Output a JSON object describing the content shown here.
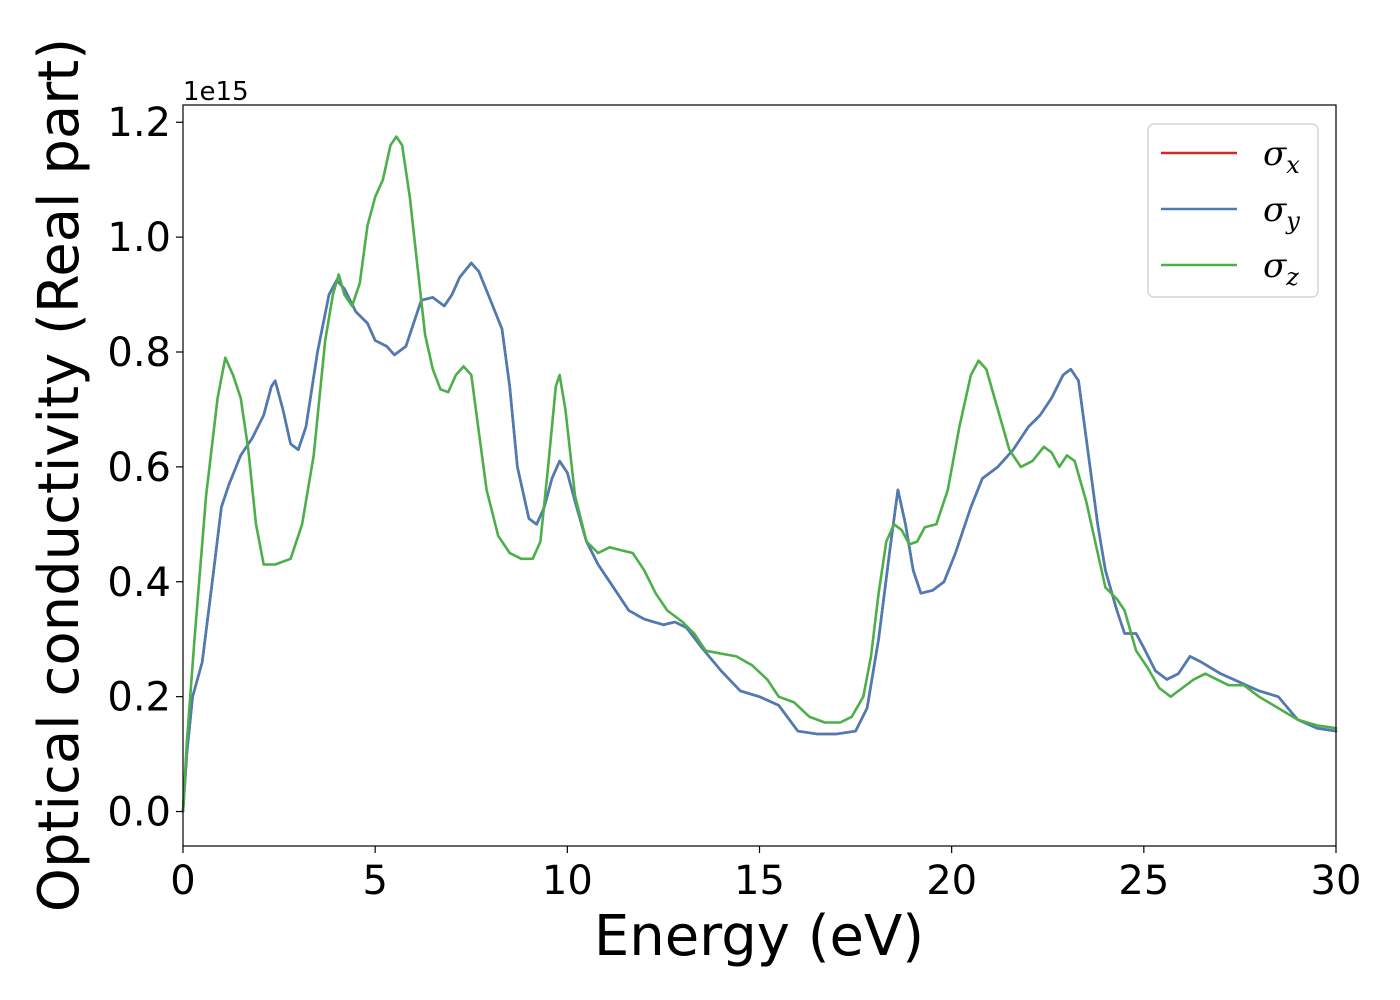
{
  "chart_data": {
    "type": "line",
    "xlabel": "Energy (eV)",
    "ylabel": "Optical conductivity (Real part)",
    "y_offset_label": "1e15",
    "xlim": [
      0,
      30
    ],
    "ylim": [
      -0.06,
      1.23
    ],
    "x_ticks": [
      0,
      5,
      10,
      15,
      20,
      25,
      30
    ],
    "x_tick_labels": [
      "0",
      "5",
      "10",
      "15",
      "20",
      "25",
      "30"
    ],
    "y_ticks": [
      0.0,
      0.2,
      0.4,
      0.6,
      0.8,
      1.0,
      1.2
    ],
    "y_tick_labels": [
      "0.0",
      "0.2",
      "0.4",
      "0.6",
      "0.8",
      "1.0",
      "1.2"
    ],
    "grid": false,
    "legend_position": "top-right",
    "series": [
      {
        "name": "σx",
        "symbol": "σ",
        "subscript": "x",
        "color": "#d62728",
        "points": [
          [
            0,
            0
          ],
          [
            0.1,
            0.1
          ],
          [
            0.25,
            0.2
          ],
          [
            0.5,
            0.26
          ],
          [
            0.8,
            0.42
          ],
          [
            1.0,
            0.53
          ],
          [
            1.2,
            0.57
          ],
          [
            1.5,
            0.62
          ],
          [
            1.8,
            0.65
          ],
          [
            2.1,
            0.69
          ],
          [
            2.3,
            0.74
          ],
          [
            2.4,
            0.75
          ],
          [
            2.6,
            0.7
          ],
          [
            2.8,
            0.64
          ],
          [
            3.0,
            0.63
          ],
          [
            3.2,
            0.67
          ],
          [
            3.5,
            0.8
          ],
          [
            3.8,
            0.9
          ],
          [
            4.0,
            0.925
          ],
          [
            4.2,
            0.91
          ],
          [
            4.5,
            0.87
          ],
          [
            4.8,
            0.85
          ],
          [
            5.0,
            0.82
          ],
          [
            5.3,
            0.81
          ],
          [
            5.5,
            0.795
          ],
          [
            5.8,
            0.81
          ],
          [
            6.0,
            0.85
          ],
          [
            6.2,
            0.89
          ],
          [
            6.5,
            0.895
          ],
          [
            6.8,
            0.88
          ],
          [
            7.0,
            0.9
          ],
          [
            7.2,
            0.93
          ],
          [
            7.5,
            0.955
          ],
          [
            7.7,
            0.94
          ],
          [
            8.0,
            0.89
          ],
          [
            8.3,
            0.84
          ],
          [
            8.5,
            0.74
          ],
          [
            8.7,
            0.6
          ],
          [
            9.0,
            0.51
          ],
          [
            9.2,
            0.5
          ],
          [
            9.4,
            0.53
          ],
          [
            9.6,
            0.58
          ],
          [
            9.8,
            0.61
          ],
          [
            10.0,
            0.59
          ],
          [
            10.2,
            0.54
          ],
          [
            10.5,
            0.47
          ],
          [
            10.8,
            0.43
          ],
          [
            11.2,
            0.39
          ],
          [
            11.6,
            0.35
          ],
          [
            12.0,
            0.335
          ],
          [
            12.5,
            0.325
          ],
          [
            12.8,
            0.33
          ],
          [
            13.1,
            0.32
          ],
          [
            13.5,
            0.285
          ],
          [
            14.0,
            0.245
          ],
          [
            14.5,
            0.21
          ],
          [
            15.0,
            0.2
          ],
          [
            15.5,
            0.185
          ],
          [
            16.0,
            0.14
          ],
          [
            16.5,
            0.135
          ],
          [
            17.0,
            0.135
          ],
          [
            17.5,
            0.14
          ],
          [
            17.8,
            0.18
          ],
          [
            18.1,
            0.3
          ],
          [
            18.4,
            0.46
          ],
          [
            18.6,
            0.56
          ],
          [
            18.8,
            0.5
          ],
          [
            19.0,
            0.42
          ],
          [
            19.2,
            0.38
          ],
          [
            19.5,
            0.385
          ],
          [
            19.8,
            0.4
          ],
          [
            20.1,
            0.45
          ],
          [
            20.5,
            0.53
          ],
          [
            20.8,
            0.58
          ],
          [
            21.2,
            0.6
          ],
          [
            21.6,
            0.63
          ],
          [
            22.0,
            0.67
          ],
          [
            22.3,
            0.69
          ],
          [
            22.6,
            0.72
          ],
          [
            22.9,
            0.76
          ],
          [
            23.1,
            0.77
          ],
          [
            23.3,
            0.75
          ],
          [
            23.5,
            0.65
          ],
          [
            23.8,
            0.5
          ],
          [
            24.0,
            0.42
          ],
          [
            24.3,
            0.35
          ],
          [
            24.5,
            0.31
          ],
          [
            24.8,
            0.31
          ],
          [
            25.0,
            0.285
          ],
          [
            25.3,
            0.245
          ],
          [
            25.6,
            0.23
          ],
          [
            25.9,
            0.24
          ],
          [
            26.2,
            0.27
          ],
          [
            26.5,
            0.26
          ],
          [
            27.0,
            0.24
          ],
          [
            27.5,
            0.225
          ],
          [
            28.0,
            0.21
          ],
          [
            28.5,
            0.2
          ],
          [
            29.0,
            0.16
          ],
          [
            29.5,
            0.145
          ],
          [
            30.0,
            0.14
          ]
        ]
      },
      {
        "name": "σy",
        "symbol": "σ",
        "subscript": "y",
        "color": "#4a7db5",
        "points": [
          [
            0,
            0
          ],
          [
            0.1,
            0.1
          ],
          [
            0.25,
            0.2
          ],
          [
            0.5,
            0.26
          ],
          [
            0.8,
            0.42
          ],
          [
            1.0,
            0.53
          ],
          [
            1.2,
            0.57
          ],
          [
            1.5,
            0.62
          ],
          [
            1.8,
            0.65
          ],
          [
            2.1,
            0.69
          ],
          [
            2.3,
            0.74
          ],
          [
            2.4,
            0.75
          ],
          [
            2.6,
            0.7
          ],
          [
            2.8,
            0.64
          ],
          [
            3.0,
            0.63
          ],
          [
            3.2,
            0.67
          ],
          [
            3.5,
            0.8
          ],
          [
            3.8,
            0.9
          ],
          [
            4.0,
            0.925
          ],
          [
            4.2,
            0.91
          ],
          [
            4.5,
            0.87
          ],
          [
            4.8,
            0.85
          ],
          [
            5.0,
            0.82
          ],
          [
            5.3,
            0.81
          ],
          [
            5.5,
            0.795
          ],
          [
            5.8,
            0.81
          ],
          [
            6.0,
            0.85
          ],
          [
            6.2,
            0.89
          ],
          [
            6.5,
            0.895
          ],
          [
            6.8,
            0.88
          ],
          [
            7.0,
            0.9
          ],
          [
            7.2,
            0.93
          ],
          [
            7.5,
            0.955
          ],
          [
            7.7,
            0.94
          ],
          [
            8.0,
            0.89
          ],
          [
            8.3,
            0.84
          ],
          [
            8.5,
            0.74
          ],
          [
            8.7,
            0.6
          ],
          [
            9.0,
            0.51
          ],
          [
            9.2,
            0.5
          ],
          [
            9.4,
            0.53
          ],
          [
            9.6,
            0.58
          ],
          [
            9.8,
            0.61
          ],
          [
            10.0,
            0.59
          ],
          [
            10.2,
            0.54
          ],
          [
            10.5,
            0.47
          ],
          [
            10.8,
            0.43
          ],
          [
            11.2,
            0.39
          ],
          [
            11.6,
            0.35
          ],
          [
            12.0,
            0.335
          ],
          [
            12.5,
            0.325
          ],
          [
            12.8,
            0.33
          ],
          [
            13.1,
            0.32
          ],
          [
            13.5,
            0.285
          ],
          [
            14.0,
            0.245
          ],
          [
            14.5,
            0.21
          ],
          [
            15.0,
            0.2
          ],
          [
            15.5,
            0.185
          ],
          [
            16.0,
            0.14
          ],
          [
            16.5,
            0.135
          ],
          [
            17.0,
            0.135
          ],
          [
            17.5,
            0.14
          ],
          [
            17.8,
            0.18
          ],
          [
            18.1,
            0.3
          ],
          [
            18.4,
            0.46
          ],
          [
            18.6,
            0.56
          ],
          [
            18.8,
            0.5
          ],
          [
            19.0,
            0.42
          ],
          [
            19.2,
            0.38
          ],
          [
            19.5,
            0.385
          ],
          [
            19.8,
            0.4
          ],
          [
            20.1,
            0.45
          ],
          [
            20.5,
            0.53
          ],
          [
            20.8,
            0.58
          ],
          [
            21.2,
            0.6
          ],
          [
            21.6,
            0.63
          ],
          [
            22.0,
            0.67
          ],
          [
            22.3,
            0.69
          ],
          [
            22.6,
            0.72
          ],
          [
            22.9,
            0.76
          ],
          [
            23.1,
            0.77
          ],
          [
            23.3,
            0.75
          ],
          [
            23.5,
            0.65
          ],
          [
            23.8,
            0.5
          ],
          [
            24.0,
            0.42
          ],
          [
            24.3,
            0.35
          ],
          [
            24.5,
            0.31
          ],
          [
            24.8,
            0.31
          ],
          [
            25.0,
            0.285
          ],
          [
            25.3,
            0.245
          ],
          [
            25.6,
            0.23
          ],
          [
            25.9,
            0.24
          ],
          [
            26.2,
            0.27
          ],
          [
            26.5,
            0.26
          ],
          [
            27.0,
            0.24
          ],
          [
            27.5,
            0.225
          ],
          [
            28.0,
            0.21
          ],
          [
            28.5,
            0.2
          ],
          [
            29.0,
            0.16
          ],
          [
            29.5,
            0.145
          ],
          [
            30.0,
            0.14
          ]
        ]
      },
      {
        "name": "σz",
        "symbol": "σ",
        "subscript": "z",
        "color": "#4daf4a",
        "points": [
          [
            0,
            0
          ],
          [
            0.1,
            0.12
          ],
          [
            0.3,
            0.3
          ],
          [
            0.6,
            0.55
          ],
          [
            0.9,
            0.72
          ],
          [
            1.1,
            0.79
          ],
          [
            1.3,
            0.76
          ],
          [
            1.5,
            0.72
          ],
          [
            1.7,
            0.63
          ],
          [
            1.9,
            0.5
          ],
          [
            2.1,
            0.43
          ],
          [
            2.4,
            0.43
          ],
          [
            2.8,
            0.44
          ],
          [
            3.1,
            0.5
          ],
          [
            3.4,
            0.62
          ],
          [
            3.7,
            0.82
          ],
          [
            3.9,
            0.9
          ],
          [
            4.05,
            0.935
          ],
          [
            4.2,
            0.9
          ],
          [
            4.4,
            0.88
          ],
          [
            4.6,
            0.92
          ],
          [
            4.8,
            1.02
          ],
          [
            5.0,
            1.07
          ],
          [
            5.2,
            1.1
          ],
          [
            5.4,
            1.16
          ],
          [
            5.55,
            1.175
          ],
          [
            5.7,
            1.16
          ],
          [
            5.9,
            1.07
          ],
          [
            6.1,
            0.95
          ],
          [
            6.3,
            0.83
          ],
          [
            6.5,
            0.77
          ],
          [
            6.7,
            0.735
          ],
          [
            6.9,
            0.73
          ],
          [
            7.1,
            0.76
          ],
          [
            7.3,
            0.775
          ],
          [
            7.5,
            0.76
          ],
          [
            7.7,
            0.66
          ],
          [
            7.9,
            0.56
          ],
          [
            8.2,
            0.48
          ],
          [
            8.5,
            0.45
          ],
          [
            8.8,
            0.44
          ],
          [
            9.1,
            0.44
          ],
          [
            9.3,
            0.47
          ],
          [
            9.5,
            0.6
          ],
          [
            9.7,
            0.74
          ],
          [
            9.8,
            0.76
          ],
          [
            9.95,
            0.7
          ],
          [
            10.2,
            0.55
          ],
          [
            10.5,
            0.47
          ],
          [
            10.8,
            0.45
          ],
          [
            11.1,
            0.46
          ],
          [
            11.4,
            0.455
          ],
          [
            11.7,
            0.45
          ],
          [
            12.0,
            0.42
          ],
          [
            12.3,
            0.38
          ],
          [
            12.6,
            0.35
          ],
          [
            13.0,
            0.33
          ],
          [
            13.3,
            0.31
          ],
          [
            13.6,
            0.28
          ],
          [
            14.0,
            0.275
          ],
          [
            14.4,
            0.27
          ],
          [
            14.8,
            0.255
          ],
          [
            15.2,
            0.23
          ],
          [
            15.5,
            0.2
          ],
          [
            15.9,
            0.19
          ],
          [
            16.3,
            0.165
          ],
          [
            16.7,
            0.155
          ],
          [
            17.1,
            0.155
          ],
          [
            17.4,
            0.165
          ],
          [
            17.7,
            0.2
          ],
          [
            17.9,
            0.27
          ],
          [
            18.1,
            0.38
          ],
          [
            18.3,
            0.47
          ],
          [
            18.5,
            0.5
          ],
          [
            18.7,
            0.49
          ],
          [
            18.9,
            0.465
          ],
          [
            19.1,
            0.47
          ],
          [
            19.3,
            0.495
          ],
          [
            19.6,
            0.5
          ],
          [
            19.9,
            0.56
          ],
          [
            20.2,
            0.67
          ],
          [
            20.5,
            0.76
          ],
          [
            20.7,
            0.785
          ],
          [
            20.9,
            0.77
          ],
          [
            21.2,
            0.7
          ],
          [
            21.5,
            0.63
          ],
          [
            21.8,
            0.6
          ],
          [
            22.1,
            0.61
          ],
          [
            22.4,
            0.635
          ],
          [
            22.6,
            0.625
          ],
          [
            22.8,
            0.6
          ],
          [
            23.0,
            0.62
          ],
          [
            23.2,
            0.61
          ],
          [
            23.5,
            0.54
          ],
          [
            23.8,
            0.45
          ],
          [
            24.0,
            0.39
          ],
          [
            24.3,
            0.37
          ],
          [
            24.5,
            0.35
          ],
          [
            24.8,
            0.28
          ],
          [
            25.1,
            0.25
          ],
          [
            25.4,
            0.215
          ],
          [
            25.7,
            0.2
          ],
          [
            26.0,
            0.215
          ],
          [
            26.3,
            0.23
          ],
          [
            26.6,
            0.24
          ],
          [
            26.9,
            0.23
          ],
          [
            27.2,
            0.22
          ],
          [
            27.6,
            0.22
          ],
          [
            28.0,
            0.2
          ],
          [
            28.5,
            0.18
          ],
          [
            29.0,
            0.16
          ],
          [
            29.5,
            0.15
          ],
          [
            30.0,
            0.145
          ]
        ]
      }
    ]
  }
}
